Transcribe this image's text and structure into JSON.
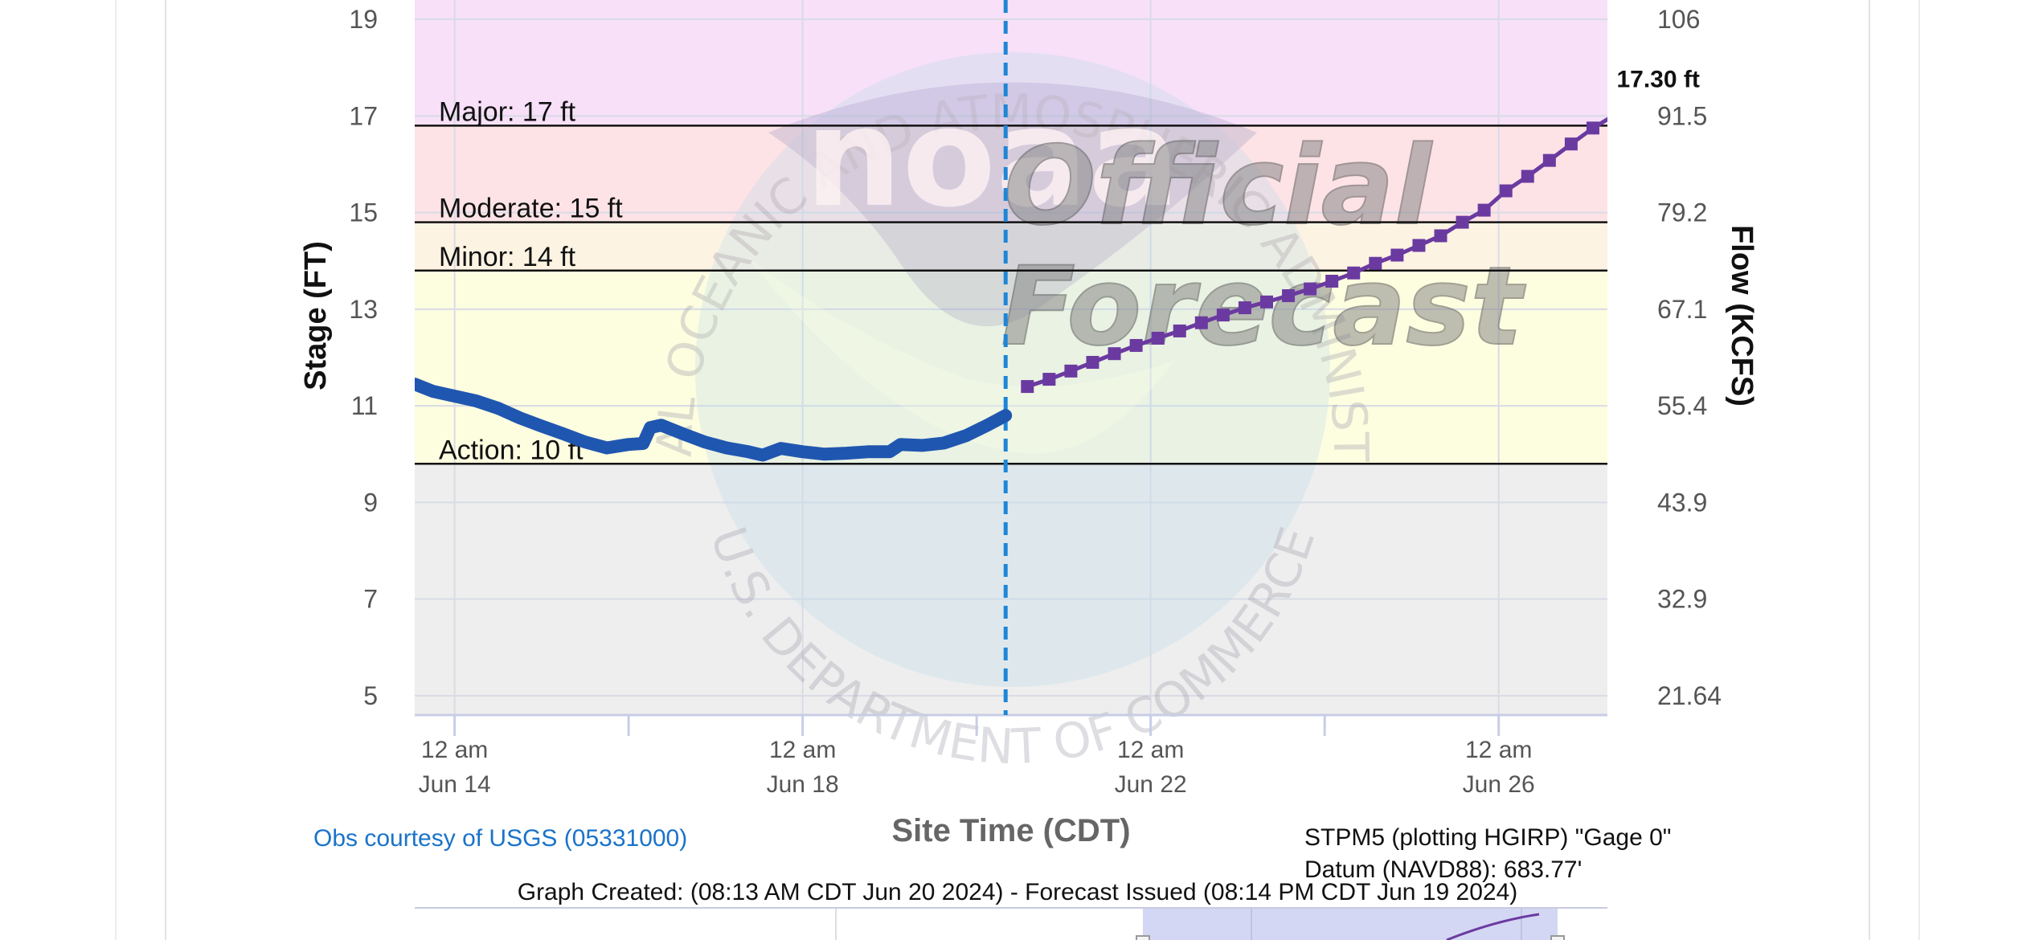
{
  "chart_data": {
    "type": "line",
    "title": "",
    "xlabel": "Site Time (CDT)",
    "ylabel": "Stage (FT)",
    "y2label": "Flow (KCFS)",
    "ylim": [
      4.6,
      19.4
    ],
    "xlim": [
      "2024-06-13T13:00",
      "2024-06-27T06:00"
    ],
    "y_ticks": [
      "5",
      "7",
      "9",
      "11",
      "13",
      "15",
      "17",
      "19"
    ],
    "y2_ticks": [
      "21.64",
      "32.9",
      "43.9",
      "55.4",
      "67.1",
      "79.2",
      "91.5",
      "106"
    ],
    "x_tick_labels": [
      {
        "x": "2024-06-14T00:00",
        "line1": "12 am",
        "line2": "Jun 14"
      },
      {
        "x": "2024-06-18T00:00",
        "line1": "12 am",
        "line2": "Jun 18"
      },
      {
        "x": "2024-06-22T00:00",
        "line1": "12 am",
        "line2": "Jun 22"
      },
      {
        "x": "2024-06-26T00:00",
        "line1": "12 am",
        "line2": "Jun 26"
      }
    ],
    "minor_x_ticks": [
      "2024-06-16T00:00",
      "2024-06-20T00:00",
      "2024-06-24T00:00"
    ],
    "forecast_issued_at": "2024-06-20T08:00",
    "grid": true,
    "flood_categories": [
      {
        "label": "Action: 10 ft",
        "stage": 9.8,
        "color": "#fdfde0"
      },
      {
        "label": "Minor: 14 ft",
        "stage": 13.8,
        "color": "#fdf3e3"
      },
      {
        "label": "Moderate: 15 ft",
        "stage": 14.8,
        "color": "#fde3e6"
      },
      {
        "label": "Major: 17 ft",
        "stage": 16.8,
        "color": "#f7e0f8"
      }
    ],
    "below_action_color": "#eeeeee",
    "series": [
      {
        "kind": "observed",
        "color": "#1f56b0",
        "points": [
          [
            "2024-06-13T13:00",
            11.45
          ],
          [
            "2024-06-13T18:00",
            11.3
          ],
          [
            "2024-06-14T00:00",
            11.2
          ],
          [
            "2024-06-14T06:00",
            11.1
          ],
          [
            "2024-06-14T12:00",
            10.95
          ],
          [
            "2024-06-14T18:00",
            10.75
          ],
          [
            "2024-06-15T00:00",
            10.58
          ],
          [
            "2024-06-15T06:00",
            10.42
          ],
          [
            "2024-06-15T12:00",
            10.25
          ],
          [
            "2024-06-15T18:00",
            10.13
          ],
          [
            "2024-06-16T00:00",
            10.2
          ],
          [
            "2024-06-16T04:00",
            10.22
          ],
          [
            "2024-06-16T06:00",
            10.55
          ],
          [
            "2024-06-16T09:00",
            10.6
          ],
          [
            "2024-06-16T15:00",
            10.42
          ],
          [
            "2024-06-16T21:00",
            10.25
          ],
          [
            "2024-06-17T03:00",
            10.13
          ],
          [
            "2024-06-17T09:00",
            10.05
          ],
          [
            "2024-06-17T13:00",
            9.98
          ],
          [
            "2024-06-17T18:00",
            10.12
          ],
          [
            "2024-06-18T00:00",
            10.05
          ],
          [
            "2024-06-18T06:00",
            10.0
          ],
          [
            "2024-06-18T12:00",
            10.02
          ],
          [
            "2024-06-18T18:00",
            10.05
          ],
          [
            "2024-06-19T00:00",
            10.05
          ],
          [
            "2024-06-19T03:00",
            10.2
          ],
          [
            "2024-06-19T09:00",
            10.18
          ],
          [
            "2024-06-19T15:00",
            10.23
          ],
          [
            "2024-06-19T21:00",
            10.38
          ],
          [
            "2024-06-20T03:00",
            10.6
          ],
          [
            "2024-06-20T08:00",
            10.8
          ]
        ]
      },
      {
        "kind": "forecast",
        "color": "#6b3aa0",
        "peak_label": "17.30 ft",
        "points": [
          [
            "2024-06-20T14:00",
            11.4
          ],
          [
            "2024-06-20T20:00",
            11.55
          ],
          [
            "2024-06-21T02:00",
            11.72
          ],
          [
            "2024-06-21T08:00",
            11.9
          ],
          [
            "2024-06-21T14:00",
            12.08
          ],
          [
            "2024-06-21T20:00",
            12.25
          ],
          [
            "2024-06-22T02:00",
            12.4
          ],
          [
            "2024-06-22T08:00",
            12.55
          ],
          [
            "2024-06-22T14:00",
            12.72
          ],
          [
            "2024-06-22T20:00",
            12.88
          ],
          [
            "2024-06-23T02:00",
            13.03
          ],
          [
            "2024-06-23T08:00",
            13.15
          ],
          [
            "2024-06-23T14:00",
            13.28
          ],
          [
            "2024-06-23T20:00",
            13.42
          ],
          [
            "2024-06-24T02:00",
            13.58
          ],
          [
            "2024-06-24T08:00",
            13.75
          ],
          [
            "2024-06-24T14:00",
            13.95
          ],
          [
            "2024-06-24T20:00",
            14.12
          ],
          [
            "2024-06-25T02:00",
            14.32
          ],
          [
            "2024-06-25T08:00",
            14.52
          ],
          [
            "2024-06-25T14:00",
            14.8
          ],
          [
            "2024-06-25T20:00",
            15.05
          ],
          [
            "2024-06-26T02:00",
            15.45
          ],
          [
            "2024-06-26T08:00",
            15.75
          ],
          [
            "2024-06-26T14:00",
            16.08
          ],
          [
            "2024-06-26T20:00",
            16.42
          ],
          [
            "2024-06-27T02:00",
            16.75
          ],
          [
            "2024-06-27T08:00",
            17.02
          ],
          [
            "2024-06-27T14:00",
            17.2
          ],
          [
            "2024-06-27T20:00",
            17.3
          ]
        ]
      }
    ]
  },
  "watermark": {
    "agency_text": "NATIONAL OCEANIC AND ATMOSPHERIC ADMINISTRATION",
    "department_text": "U.S. DEPARTMENT OF COMMERCE",
    "logo_text": "noaa",
    "stamp_line1": "Official",
    "stamp_line2": "Forecast"
  },
  "footer": {
    "credit": "Obs courtesy of USGS (05331000)",
    "gage_line1": "STPM5 (plotting HGIRP) \"Gage 0\"",
    "gage_line2": "Datum (NAVD88): 683.77'",
    "graph_created": "Graph Created: (08:13 AM CDT Jun 20 2024) - Forecast Issued (08:14 PM CDT Jun 19 2024)"
  },
  "colors": {
    "observed": "#1f56b0",
    "forecast": "#6b3aa0",
    "issue_line": "#1f86d6",
    "credit_link": "#1a73c9"
  }
}
